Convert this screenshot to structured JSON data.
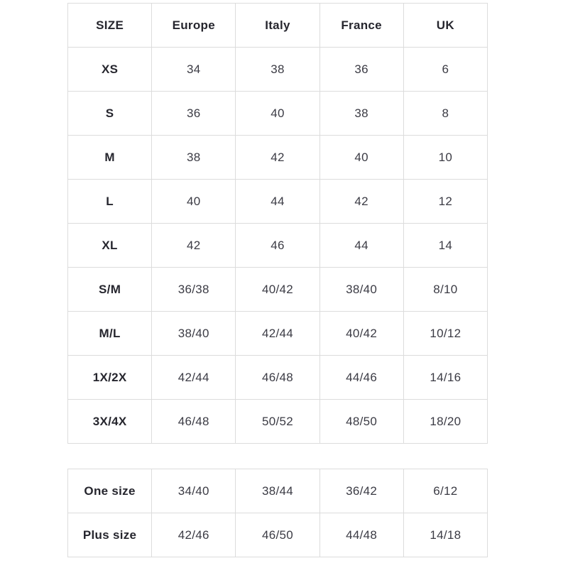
{
  "colors": {
    "border": "#dcdcdc",
    "header_text": "#26262e",
    "cell_text": "#3b3b44",
    "page_background": "#ffffff"
  },
  "size_chart": {
    "columns": [
      "SIZE",
      "Europe",
      "Italy",
      "France",
      "UK"
    ],
    "rows": [
      {
        "size": "XS",
        "values": [
          "34",
          "38",
          "36",
          "6"
        ]
      },
      {
        "size": "S",
        "values": [
          "36",
          "40",
          "38",
          "8"
        ]
      },
      {
        "size": "M",
        "values": [
          "38",
          "42",
          "40",
          "10"
        ]
      },
      {
        "size": "L",
        "values": [
          "40",
          "44",
          "42",
          "12"
        ]
      },
      {
        "size": "XL",
        "values": [
          "42",
          "46",
          "44",
          "14"
        ]
      },
      {
        "size": "S/M",
        "values": [
          "36/38",
          "40/42",
          "38/40",
          "8/10"
        ]
      },
      {
        "size": "M/L",
        "values": [
          "38/40",
          "42/44",
          "40/42",
          "10/12"
        ]
      },
      {
        "size": "1X/2X",
        "values": [
          "42/44",
          "46/48",
          "44/46",
          "14/16"
        ]
      },
      {
        "size": "3X/4X",
        "values": [
          "46/48",
          "50/52",
          "48/50",
          "18/20"
        ]
      }
    ]
  },
  "extra_chart": {
    "rows": [
      {
        "size": "One size",
        "values": [
          "34/40",
          "38/44",
          "36/42",
          "6/12"
        ]
      },
      {
        "size": "Plus size",
        "values": [
          "42/46",
          "46/50",
          "44/48",
          "14/18"
        ]
      }
    ]
  }
}
